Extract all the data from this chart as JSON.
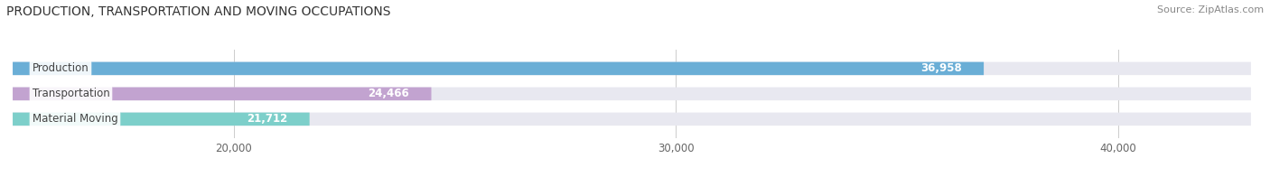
{
  "title": "PRODUCTION, TRANSPORTATION AND MOVING OCCUPATIONS",
  "source": "Source: ZipAtlas.com",
  "categories": [
    "Production",
    "Transportation",
    "Material Moving"
  ],
  "values": [
    36958,
    24466,
    21712
  ],
  "bar_colors": [
    "#6aaed6",
    "#c2a3d0",
    "#7dcfca"
  ],
  "background_color": "#ffffff",
  "strip_color": "#e8e8f0",
  "xlim_left": 15000,
  "xlim_right": 43000,
  "xticks": [
    20000,
    30000,
    40000
  ],
  "bar_height": 0.52,
  "value_inside_color": "#ffffff",
  "label_box_color": "#ffffff",
  "label_text_color": "#444444",
  "axis_text_color": "#666666",
  "title_color": "#333333",
  "source_color": "#888888",
  "figsize": [
    14.06,
    1.96
  ],
  "dpi": 100
}
